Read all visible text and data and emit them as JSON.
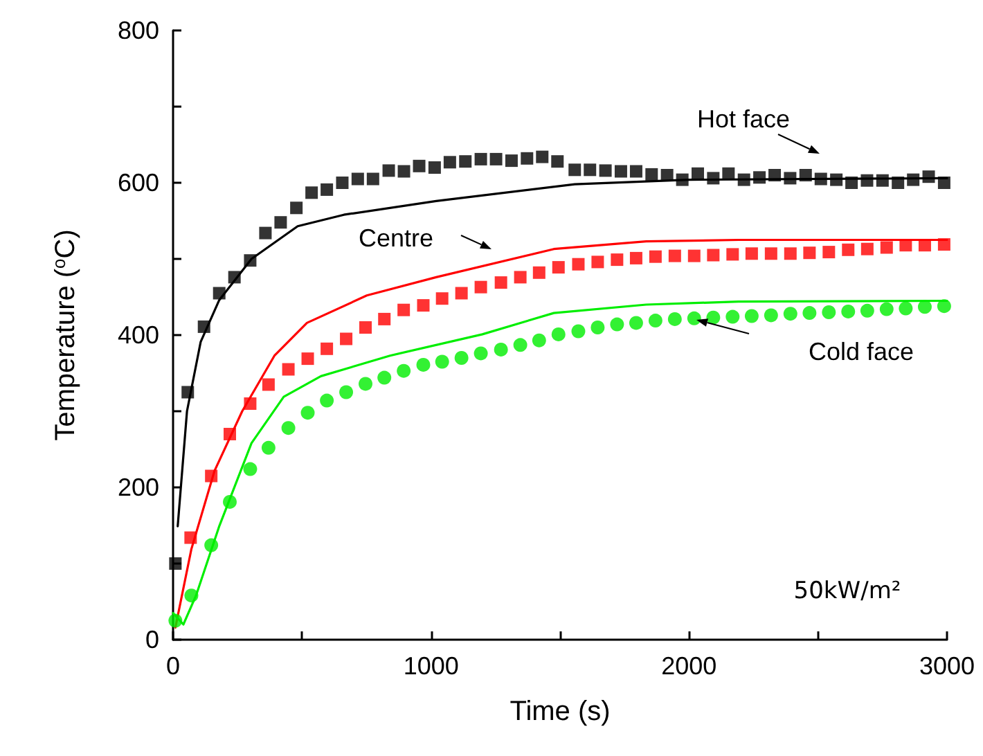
{
  "chart_data": {
    "type": "line",
    "xlabel": "Time (s)",
    "ylabel": "Temperature ($^{o}$C)",
    "xlim": [
      0,
      3000
    ],
    "xticks": [
      0,
      {
        "value": 500,
        "label": null
      },
      1000,
      {
        "value": 1500,
        "label": null
      },
      2000,
      {
        "value": 2500,
        "label": null
      },
      3000
    ],
    "ylim": [
      0,
      800
    ],
    "yticks": [
      0,
      {
        "value": 100,
        "label": null
      },
      200,
      {
        "value": 300,
        "label": null
      },
      400,
      {
        "value": 500,
        "label": null
      },
      600,
      {
        "value": 700,
        "label": null
      },
      800
    ],
    "grid": false,
    "annotations": [
      "Hot face",
      "Centre",
      "Cold face",
      "50kW/m²"
    ],
    "series": [
      {
        "type": "scatter",
        "marker": "square",
        "color": "#000000",
        "x": [
          9,
          57,
          120,
          179,
          238,
          299,
          358,
          417,
          478,
          537,
          596,
          656,
          716,
          775,
          836,
          895,
          954,
          1014,
          1073,
          1133,
          1193,
          1252,
          1312,
          1372,
          1431,
          1490,
          1557,
          1616,
          1676,
          1736,
          1795,
          1855,
          1915,
          1974,
          2034,
          2094,
          2153,
          2213,
          2273,
          2332,
          2392,
          2452,
          2511,
          2571,
          2630,
          2690,
          2750,
          2810,
          2869,
          2929,
          2989
        ],
        "values": [
          100,
          325,
          411,
          455,
          476,
          498,
          534,
          548,
          567,
          587,
          591,
          600,
          605,
          605,
          616,
          615,
          622,
          620,
          627,
          628,
          631,
          631,
          629,
          632,
          634,
          628,
          617,
          617,
          616,
          615,
          615,
          611,
          610,
          604,
          612,
          606,
          612,
          604,
          607,
          610,
          606,
          610,
          605,
          604,
          600,
          603,
          603,
          600,
          604,
          608,
          600
        ]
      },
      {
        "type": "scatter",
        "marker": "square",
        "color": "#ff0000",
        "x": [
          68,
          148,
          220,
          299,
          370,
          447,
          522,
          596,
          671,
          746,
          819,
          894,
          970,
          1043,
          1118,
          1193,
          1271,
          1346,
          1419,
          1494,
          1571,
          1646,
          1721,
          1795,
          1870,
          1945,
          2020,
          2094,
          2169,
          2243,
          2318,
          2393,
          2467,
          2542,
          2617,
          2691,
          2766,
          2840,
          2914,
          2989
        ],
        "values": [
          134,
          215,
          270,
          310,
          335,
          355,
          369,
          382,
          395,
          410,
          421,
          433,
          439,
          448,
          455,
          463,
          469,
          476,
          482,
          489,
          493,
          496,
          499,
          501,
          503,
          504,
          504,
          505,
          506,
          507,
          507,
          507,
          508,
          509,
          512,
          513,
          515,
          518,
          518,
          519
        ]
      },
      {
        "type": "scatter",
        "marker": "circle",
        "color": "#00ee00",
        "x": [
          9,
          71,
          148,
          220,
          299,
          370,
          447,
          522,
          596,
          671,
          746,
          819,
          894,
          970,
          1043,
          1118,
          1193,
          1271,
          1346,
          1419,
          1494,
          1571,
          1646,
          1721,
          1795,
          1870,
          1945,
          2020,
          2094,
          2169,
          2243,
          2318,
          2393,
          2467,
          2542,
          2617,
          2691,
          2766,
          2840,
          2914,
          2989
        ],
        "values": [
          25,
          58,
          124,
          181,
          224,
          252,
          278,
          298,
          314,
          325,
          336,
          344,
          353,
          361,
          365,
          370,
          376,
          381,
          387,
          393,
          401,
          405,
          410,
          414,
          416,
          419,
          421,
          422,
          423,
          424,
          425,
          426,
          428,
          429,
          430,
          431,
          432,
          434,
          435,
          437,
          438
        ]
      },
      {
        "marker": "none",
        "color": "#000000",
        "x": [
          18,
          54,
          107,
          179,
          304,
          483,
          662,
          1020,
          1557,
          2000,
          3000
        ],
        "values": [
          149,
          300,
          391,
          446,
          500,
          543,
          558,
          576,
          598,
          604,
          606
        ]
      },
      {
        "marker": "none",
        "color": "#ff0000",
        "x": [
          9,
          71,
          161,
          268,
          393,
          519,
          751,
          1020,
          1476,
          1834,
          2192,
          3000
        ],
        "values": [
          16,
          119,
          222,
          300,
          373,
          416,
          452,
          476,
          513,
          523,
          525,
          525
        ]
      },
      {
        "marker": "none",
        "color": "#00ee00",
        "x": [
          0,
          40,
          89,
          179,
          304,
          429,
          573,
          841,
          1199,
          1476,
          1834,
          2192,
          3000
        ],
        "values": [
          35,
          20,
          58,
          149,
          258,
          319,
          346,
          373,
          401,
          429,
          440,
          444,
          445
        ]
      }
    ]
  }
}
